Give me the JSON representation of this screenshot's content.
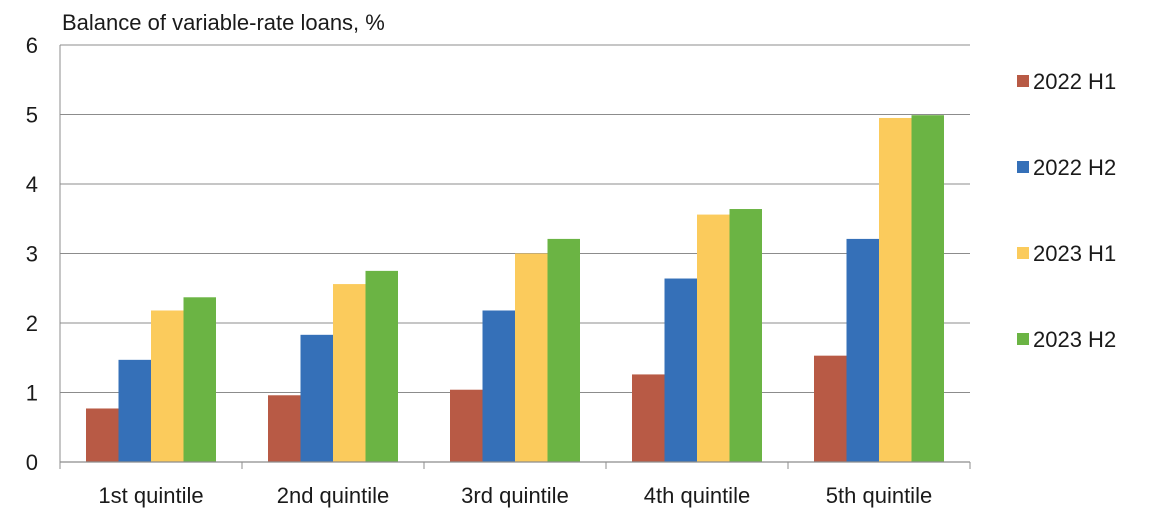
{
  "chart_data": {
    "type": "bar",
    "title": "",
    "ylabel": "Balance of variable-rate loans, %",
    "xlabel": "",
    "ylim": [
      0,
      6
    ],
    "yticks": [
      0,
      1,
      2,
      3,
      4,
      5,
      6
    ],
    "grid": "horizontal",
    "legend_position": "right",
    "categories": [
      "1st quintile",
      "2nd quintile",
      "3rd quintile",
      "4th quintile",
      "5th quintile"
    ],
    "series": [
      {
        "name": "2022 H1",
        "color": "#B85A45",
        "values": [
          0.77,
          0.96,
          1.04,
          1.26,
          1.53
        ]
      },
      {
        "name": "2022 H2",
        "color": "#3570B8",
        "values": [
          1.47,
          1.83,
          2.18,
          2.64,
          3.21
        ]
      },
      {
        "name": "2023 H1",
        "color": "#FBCB5C",
        "values": [
          2.18,
          2.56,
          3.0,
          3.56,
          4.95
        ]
      },
      {
        "name": "2023 H2",
        "color": "#6BB444",
        "values": [
          2.37,
          2.75,
          3.21,
          3.64,
          4.99
        ]
      }
    ]
  }
}
